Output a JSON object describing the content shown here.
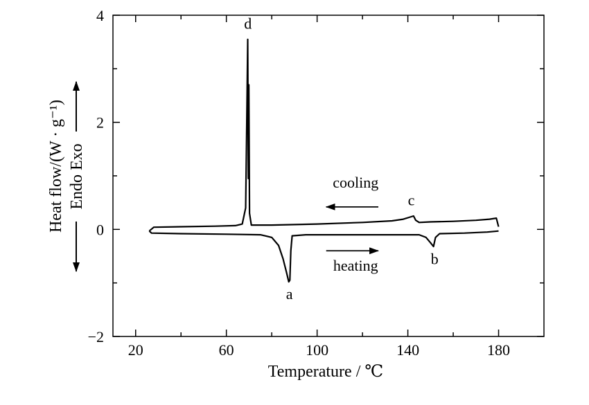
{
  "chart_data": {
    "type": "line",
    "title": "",
    "xlabel": "Temperature / ℃",
    "ylabel": "Heat flow/(W · g⁻¹)",
    "direction_label": "Endo Exo",
    "xlim": [
      10,
      200
    ],
    "ylim": [
      -2,
      4
    ],
    "x_ticks": [
      20,
      60,
      100,
      140,
      180
    ],
    "x_minor_ticks": [
      40,
      80,
      120,
      160
    ],
    "y_ticks": [
      -2,
      0,
      2,
      4
    ],
    "y_minor_ticks": [
      -1,
      1,
      3
    ],
    "y_tick_labels": [
      "−2",
      "0",
      "2",
      "4"
    ],
    "grid": false,
    "legend": "none",
    "series": [
      {
        "points": [
          [
            26,
            -0.03
          ],
          [
            28,
            0.04
          ],
          [
            40,
            0.05
          ],
          [
            55,
            0.06
          ],
          [
            64,
            0.07
          ],
          [
            67,
            0.1
          ],
          [
            68.5,
            0.4
          ],
          [
            69.0,
            2.0
          ],
          [
            69.4,
            3.55
          ],
          [
            69.7,
            0.95
          ],
          [
            69.9,
            2.7
          ],
          [
            70.2,
            0.3
          ],
          [
            71,
            0.08
          ],
          [
            80,
            0.08
          ],
          [
            100,
            0.1
          ],
          [
            120,
            0.13
          ],
          [
            133,
            0.16
          ],
          [
            138,
            0.19
          ],
          [
            141,
            0.23
          ],
          [
            142.5,
            0.25
          ],
          [
            143.5,
            0.17
          ],
          [
            145,
            0.13
          ],
          [
            150,
            0.14
          ],
          [
            160,
            0.15
          ],
          [
            170,
            0.17
          ],
          [
            176,
            0.19
          ],
          [
            179,
            0.21
          ],
          [
            180,
            0.05
          ]
        ]
      },
      {
        "points": [
          [
            26,
            -0.03
          ],
          [
            27,
            -0.07
          ],
          [
            40,
            -0.08
          ],
          [
            60,
            -0.09
          ],
          [
            75,
            -0.1
          ],
          [
            80,
            -0.15
          ],
          [
            83,
            -0.3
          ],
          [
            85,
            -0.55
          ],
          [
            86.5,
            -0.8
          ],
          [
            87.5,
            -0.98
          ],
          [
            88.0,
            -0.95
          ],
          [
            88.4,
            -0.4
          ],
          [
            89,
            -0.12
          ],
          [
            95,
            -0.1
          ],
          [
            110,
            -0.1
          ],
          [
            130,
            -0.1
          ],
          [
            145,
            -0.1
          ],
          [
            148,
            -0.15
          ],
          [
            150,
            -0.25
          ],
          [
            151.3,
            -0.32
          ],
          [
            152.2,
            -0.15
          ],
          [
            154,
            -0.08
          ],
          [
            165,
            -0.07
          ],
          [
            175,
            -0.05
          ],
          [
            180,
            -0.03
          ]
        ]
      }
    ],
    "annotations": [
      {
        "text": "d",
        "x": 69.5,
        "y": 3.75
      },
      {
        "text": "c",
        "x": 141.5,
        "y": 0.45
      },
      {
        "text": "a",
        "x": 87.8,
        "y": -1.3
      },
      {
        "text": "b",
        "x": 151.8,
        "y": -0.65
      },
      {
        "text": "cooling",
        "x": 117,
        "y": 0.78
      },
      {
        "text": "heating",
        "x": 117,
        "y": -0.77
      }
    ],
    "arrows": [
      {
        "from": [
          127,
          0.42
        ],
        "to": [
          104,
          0.42
        ],
        "label": "cooling"
      },
      {
        "from": [
          104,
          -0.4
        ],
        "to": [
          127,
          -0.4
        ],
        "label": "heating"
      }
    ]
  }
}
